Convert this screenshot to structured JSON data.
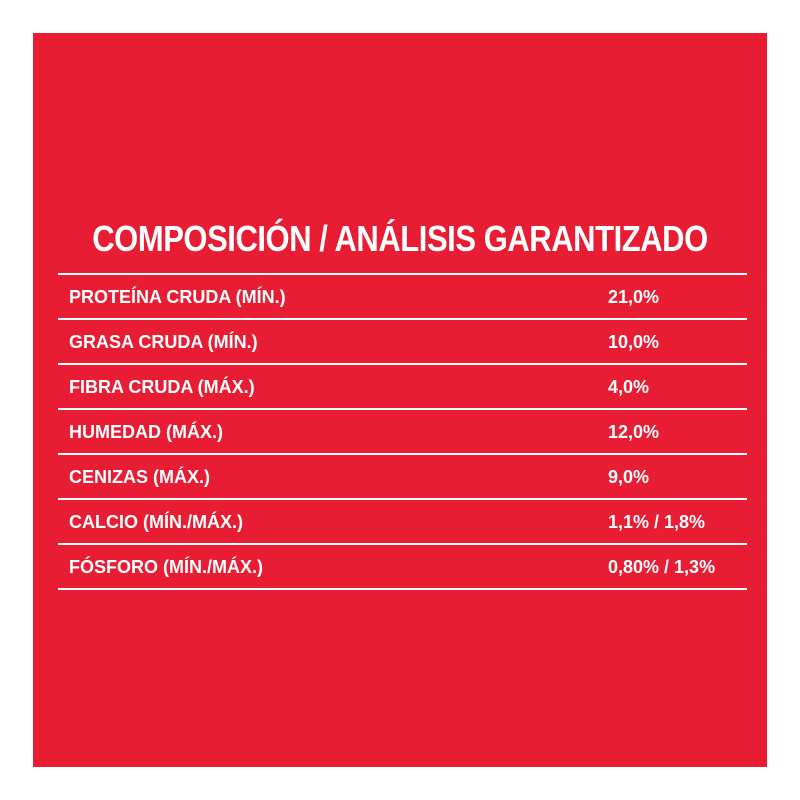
{
  "table": {
    "title": "COMPOSICIÓN / ANÁLISIS GARANTIZADO",
    "rows": [
      [
        "PROTEÍNA CRUDA (MÍN.)",
        "21,0%"
      ],
      [
        "GRASA CRUDA (MÍN.)",
        "10,0%"
      ],
      [
        "FIBRA CRUDA (MÁX.)",
        "4,0%"
      ],
      [
        "HUMEDAD (MÁX.)",
        "12,0%"
      ],
      [
        "CENIZAS (MÁX.)",
        "9,0%"
      ],
      [
        "CALCIO (MÍN./MÁX.)",
        "1,1% / 1,8%"
      ],
      [
        "FÓSFORO (MÍN./MÁX.)",
        "0,80% / 1,3%"
      ]
    ]
  }
}
